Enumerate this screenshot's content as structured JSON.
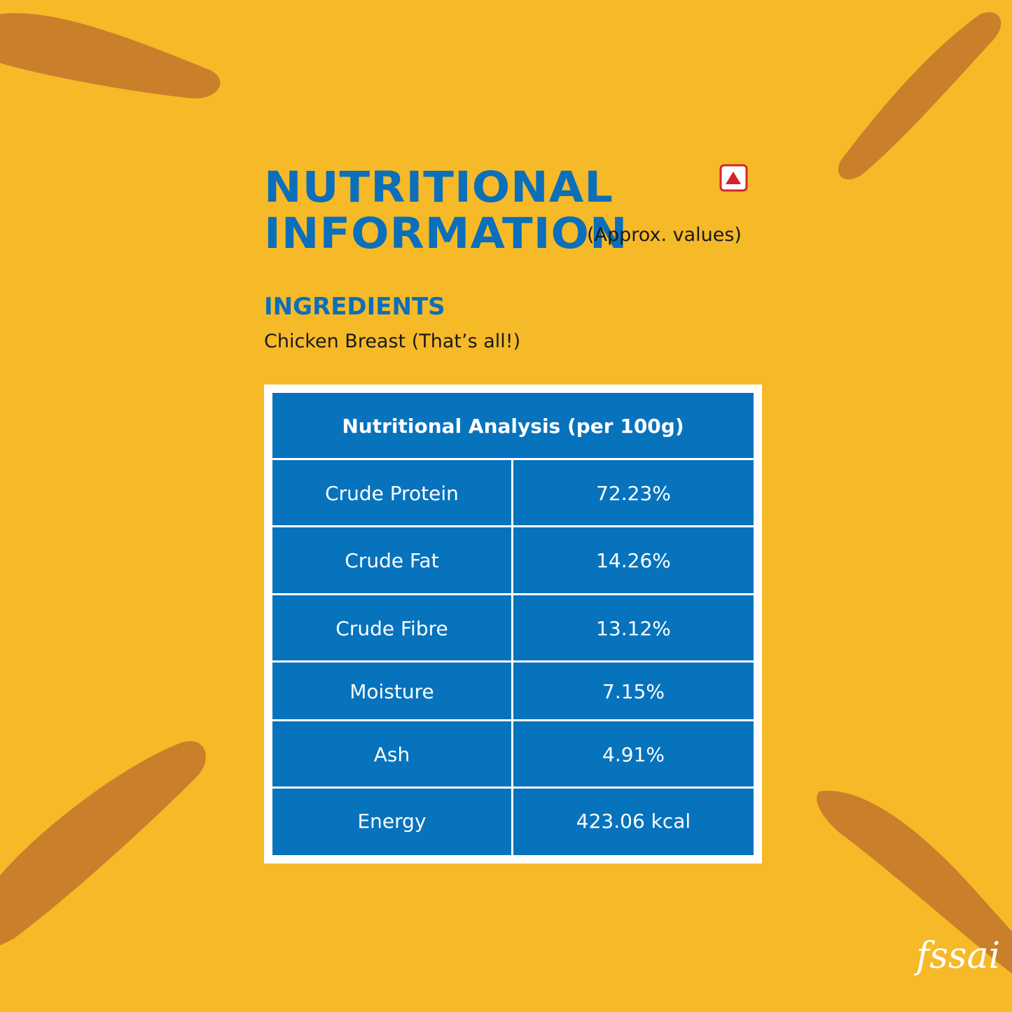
{
  "header": {
    "title_lines": [
      "NUTRITIONAL",
      "INFORMATION"
    ],
    "subtitle": "(Approx. values)"
  },
  "ingredients": {
    "heading": "INGREDIENTS",
    "text": "Chicken Breast (That’s all!)"
  },
  "table": {
    "header": "Nutritional Analysis (per 100g)",
    "rows": [
      [
        "Crude Protein",
        "72.23%"
      ],
      [
        "Crude Fat",
        "14.26%"
      ],
      [
        "Crude Fibre",
        "13.12%"
      ],
      [
        "Moisture",
        "7.15%"
      ],
      [
        "Ash",
        "4.91%"
      ],
      [
        "Energy",
        "423.06 kcal"
      ]
    ]
  },
  "logo": "fssai"
}
